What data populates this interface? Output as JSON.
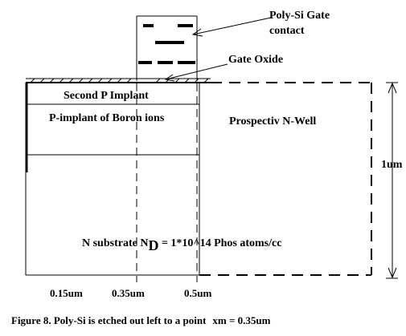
{
  "labels": {
    "poly_si_gate_line1": "Poly-Si Gate",
    "poly_si_gate_line2": "contact",
    "gate_oxide": "Gate Oxide",
    "second_p_implant": "Second P Implant",
    "p_implant_boron": "P-implant of Boron ions",
    "prospective_n_well": "Prospectiv N-Well",
    "depth": "1um",
    "substrate_prefix": "N substrate N",
    "substrate_subscript": "D",
    "substrate_suffix": " = 1*10^14 Phos atoms/cc"
  },
  "axis_ticks": [
    "0.15um",
    "0.35um",
    "0.5um"
  ],
  "caption": {
    "text": "Figure 8. Poly-Si is etched out left to a point",
    "point": "xm = 0.35um"
  }
}
